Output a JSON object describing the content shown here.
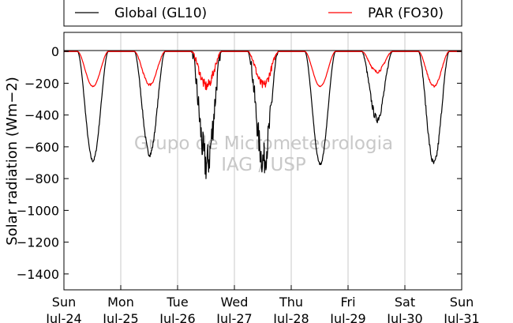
{
  "chart_data": {
    "type": "line",
    "ylabel": "Solar radiation (Wm−2)",
    "ylim": [
      -1500,
      120
    ],
    "yticks": [
      0,
      -200,
      -400,
      -600,
      -800,
      -1000,
      -1200,
      -1400
    ],
    "x_days": [
      0,
      1,
      2,
      3,
      4,
      5,
      6,
      7
    ],
    "x_tick_labels": [
      [
        "Sun",
        "Jul-24"
      ],
      [
        "Mon",
        "Jul-25"
      ],
      [
        "Tue",
        "Jul-26"
      ],
      [
        "Wed",
        "Jul-27"
      ],
      [
        "Thu",
        "Jul-28"
      ],
      [
        "Fri",
        "Jul-29"
      ],
      [
        "Sat",
        "Jul-30"
      ],
      [
        "Sun",
        "Jul-31"
      ]
    ],
    "grid": true,
    "legend_position": "top",
    "watermark": [
      "Grupo de Micrometeorologia",
      "IAG / USP"
    ],
    "series": [
      {
        "name": "Global (GL10)",
        "color": "#000000",
        "daily_minimum": [
          -690,
          -650,
          -735,
          -705,
          -710,
          -430,
          -710
        ],
        "daily_noise": [
          0.03,
          0.05,
          0.35,
          0.3,
          0.02,
          0.12,
          0.06
        ]
      },
      {
        "name": "PAR (FO30)",
        "color": "#ff0000",
        "daily_minimum": [
          -220,
          -210,
          -225,
          -220,
          -220,
          -130,
          -220
        ],
        "daily_noise": [
          0.03,
          0.08,
          0.3,
          0.28,
          0.02,
          0.15,
          0.06
        ]
      }
    ]
  }
}
